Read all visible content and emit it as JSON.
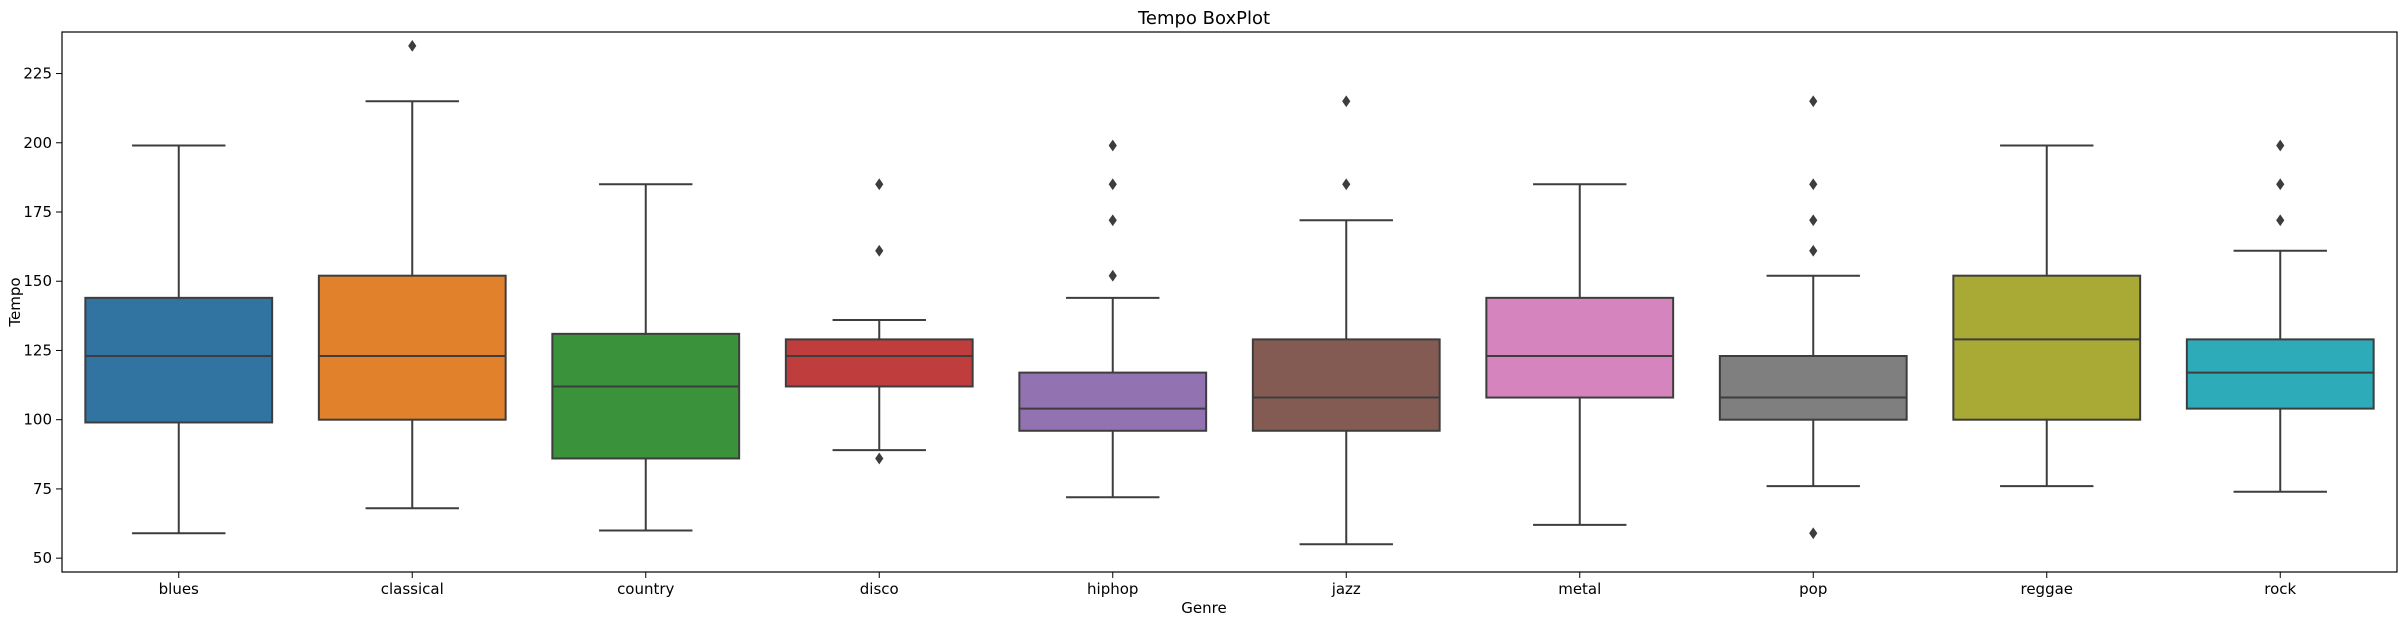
{
  "chart_data": {
    "type": "box",
    "title": "Tempo BoxPlot",
    "xlabel": "Genre",
    "ylabel": "Tempo",
    "ylim": [
      45,
      240
    ],
    "yticks": [
      50,
      75,
      100,
      125,
      150,
      175,
      200,
      225
    ],
    "grid": false,
    "legend": "none",
    "categories": [
      "blues",
      "classical",
      "country",
      "disco",
      "hiphop",
      "jazz",
      "metal",
      "pop",
      "reggae",
      "rock"
    ],
    "series": [
      {
        "category": "blues",
        "color": "#3274a1",
        "whisker_low": 59,
        "q1": 99,
        "median": 123,
        "q3": 144,
        "whisker_high": 199,
        "outliers": []
      },
      {
        "category": "classical",
        "color": "#e1812c",
        "whisker_low": 68,
        "q1": 100,
        "median": 123,
        "q3": 152,
        "whisker_high": 215,
        "outliers": [
          235
        ]
      },
      {
        "category": "country",
        "color": "#3a923a",
        "whisker_low": 60,
        "q1": 86,
        "median": 112,
        "q3": 131,
        "whisker_high": 185,
        "outliers": []
      },
      {
        "category": "disco",
        "color": "#c03d3e",
        "whisker_low": 89,
        "q1": 112,
        "median": 123,
        "q3": 129,
        "whisker_high": 136,
        "outliers": [
          86,
          161,
          185
        ]
      },
      {
        "category": "hiphop",
        "color": "#9372b2",
        "whisker_low": 72,
        "q1": 96,
        "median": 104,
        "q3": 117,
        "whisker_high": 144,
        "outliers": [
          152,
          172,
          185,
          199
        ]
      },
      {
        "category": "jazz",
        "color": "#845b53",
        "whisker_low": 55,
        "q1": 96,
        "median": 108,
        "q3": 129,
        "whisker_high": 172,
        "outliers": [
          185,
          215
        ]
      },
      {
        "category": "metal",
        "color": "#d684bd",
        "whisker_low": 62,
        "q1": 108,
        "median": 123,
        "q3": 144,
        "whisker_high": 185,
        "outliers": []
      },
      {
        "category": "pop",
        "color": "#7f7f7f",
        "whisker_low": 76,
        "q1": 100,
        "median": 108,
        "q3": 123,
        "whisker_high": 152,
        "outliers": [
          59,
          161,
          172,
          185,
          215
        ]
      },
      {
        "category": "reggae",
        "color": "#a9aa35",
        "whisker_low": 76,
        "q1": 100,
        "median": 129,
        "q3": 152,
        "whisker_high": 199,
        "outliers": []
      },
      {
        "category": "rock",
        "color": "#2eabb8",
        "whisker_low": 74,
        "q1": 104,
        "median": 117,
        "q3": 129,
        "whisker_high": 161,
        "outliers": [
          172,
          185,
          199
        ]
      }
    ]
  }
}
